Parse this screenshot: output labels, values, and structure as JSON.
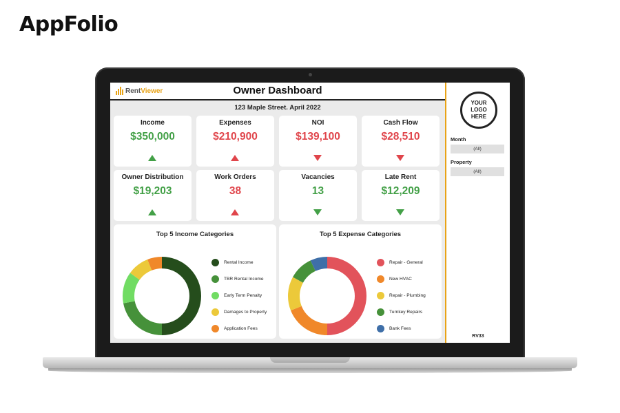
{
  "brand": "AppFolio",
  "dashboard": {
    "logo_part1": "Rent",
    "logo_part2": "Viewer",
    "title": "Owner Dashboard",
    "subtitle": "123 Maple Street. April 2022"
  },
  "kpis": [
    {
      "label": "Income",
      "value": "$350,000",
      "trend": "up",
      "color": "#43a047"
    },
    {
      "label": "Expenses",
      "value": "$210,900",
      "trend": "up",
      "color": "#e0454b"
    },
    {
      "label": "NOI",
      "value": "$139,100",
      "trend": "down",
      "color": "#e0454b"
    },
    {
      "label": "Cash Flow",
      "value": "$28,510",
      "trend": "down",
      "color": "#e0454b"
    },
    {
      "label": "Owner Distribution",
      "value": "$19,203",
      "trend": "up",
      "color": "#43a047"
    },
    {
      "label": "Work Orders",
      "value": "38",
      "trend": "up",
      "color": "#e0454b"
    },
    {
      "label": "Vacancies",
      "value": "13",
      "trend": "down",
      "color": "#43a047"
    },
    {
      "label": "Late Rent",
      "value": "$12,209",
      "trend": "down",
      "color": "#43a047"
    }
  ],
  "income_chart": {
    "title": "Top 5 Income Categories",
    "slices": [
      {
        "name": "Rental Income",
        "value": 50,
        "color": "#254d1c"
      },
      {
        "name": "TBR Rental Income",
        "value": 22,
        "color": "#46913a"
      },
      {
        "name": "Early Term Penalty",
        "value": 13,
        "color": "#71dc63"
      },
      {
        "name": "Damages to Property",
        "value": 9,
        "color": "#ecc93a"
      },
      {
        "name": "Application Fees",
        "value": 6,
        "color": "#f0882a"
      }
    ]
  },
  "expense_chart": {
    "title": "Top 5 Expense Categories",
    "slices": [
      {
        "name": "Repair - General",
        "value": 50,
        "color": "#e2535b"
      },
      {
        "name": "New HVAC",
        "value": 19,
        "color": "#f0882a"
      },
      {
        "name": "Repair - Plumbing",
        "value": 14,
        "color": "#ecc93a"
      },
      {
        "name": "Turnkey Repairs",
        "value": 10,
        "color": "#46913a"
      },
      {
        "name": "Bank Fees",
        "value": 7,
        "color": "#3f6fa8"
      }
    ]
  },
  "sidebar": {
    "logo_text": "YOUR\nLOGO\nHERE",
    "filters": [
      {
        "label": "Month",
        "value": "(All)"
      },
      {
        "label": "Property",
        "value": "(All)"
      }
    ],
    "code": "RV33"
  }
}
